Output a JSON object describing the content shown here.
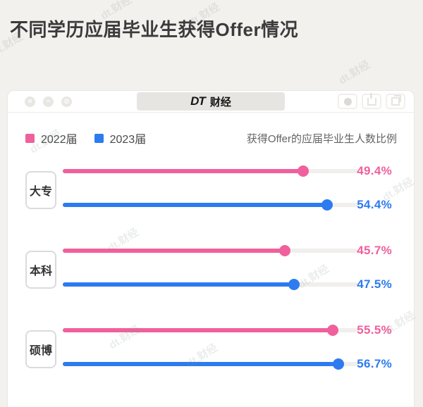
{
  "page": {
    "title": "不同学历应届毕业生获得Offer情况"
  },
  "card": {
    "window_controls": {
      "close": "×",
      "minimize": "−",
      "block": "⊘"
    },
    "brand": {
      "dt": "DT",
      "caijing": "财经"
    },
    "legend": [
      {
        "label": "2022届",
        "color": "#f0609c"
      },
      {
        "label": "2023届",
        "color": "#2d7bef"
      }
    ],
    "note": "获得Offer的应届毕业生人数比例"
  },
  "chart_data": {
    "type": "bar",
    "orientation": "horizontal",
    "title": "不同学历应届毕业生获得Offer情况",
    "subtitle": "获得Offer的应届毕业生人数比例",
    "categories": [
      "大专",
      "本科",
      "硕博"
    ],
    "series": [
      {
        "name": "2022届",
        "color": "#f0609c",
        "values": [
          49.4,
          45.7,
          55.5
        ]
      },
      {
        "name": "2023届",
        "color": "#2d7bef",
        "values": [
          54.4,
          47.5,
          56.7
        ]
      }
    ],
    "value_labels": [
      [
        "49.4%",
        "54.4%"
      ],
      [
        "45.7%",
        "47.5%"
      ],
      [
        "55.5%",
        "56.7%"
      ]
    ],
    "xlim": [
      0,
      61
    ],
    "grid": false,
    "legend_position": "top-left"
  },
  "watermark": {
    "text": "dt.财经"
  },
  "colors": {
    "page_bg": "#f2f1ee",
    "card_bg": "#ffffff",
    "track": "#f1efec",
    "title_text": "#3b3b3b"
  }
}
